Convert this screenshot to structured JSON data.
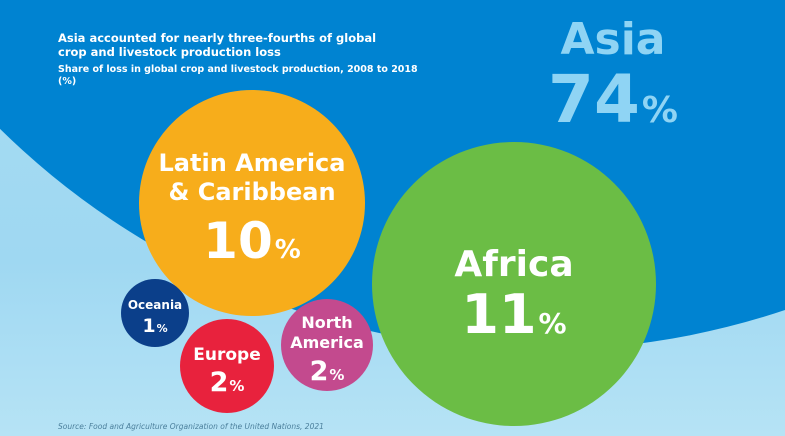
{
  "title": "Asia accounted for nearly three-fourths of global crop and livestock production loss",
  "subtitle": "Share of loss in global crop and livestock production, 2008 to 2018 (%)",
  "source": "Source: Food and Agriculture Organization of the United Nations, 2021",
  "colors": {
    "asia": "#0083d1",
    "asia_text": "#8fd4f4",
    "latin": "#f7ad1b",
    "africa": "#6bbd45",
    "oceania": "#0b3f8a",
    "europe": "#e8223d",
    "north_america": "#c34a8e",
    "background": "#a7dcf3"
  },
  "chart_data": {
    "type": "bubble",
    "title": "Asia accounted for nearly three-fourths of global crop and livestock production loss",
    "subtitle": "Share of loss in global crop and livestock production, 2008 to 2018 (%)",
    "unit": "%",
    "regions": [
      {
        "id": "asia",
        "name": "Asia",
        "value": 74,
        "value_label": "74",
        "unit": "%"
      },
      {
        "id": "latin",
        "name": "Latin America & Caribbean",
        "name_lines": [
          "Latin America",
          "& Caribbean"
        ],
        "value": 10,
        "value_label": "10",
        "unit": "%"
      },
      {
        "id": "africa",
        "name": "Africa",
        "value": 11,
        "value_label": "11",
        "unit": "%"
      },
      {
        "id": "oceania",
        "name": "Oceania",
        "value": 1,
        "value_label": "1",
        "unit": "%"
      },
      {
        "id": "europe",
        "name": "Europe",
        "value": 2,
        "value_label": "2",
        "unit": "%"
      },
      {
        "id": "north_america",
        "name": "North America",
        "name_lines": [
          "North",
          "America"
        ],
        "value": 2,
        "value_label": "2",
        "unit": "%"
      }
    ]
  }
}
